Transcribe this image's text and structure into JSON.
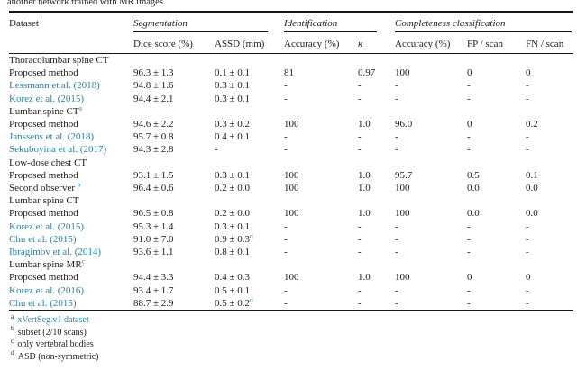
{
  "caption": "another network trained with MR images.",
  "link_color": "#2b80a6",
  "table": {
    "header": {
      "dataset": "Dataset",
      "groups": {
        "segmentation": "Segmentation",
        "identification": "Identification",
        "completeness": "Completeness classification"
      },
      "sub": {
        "dice": "Dice score (%)",
        "assd": "ASSD (mm)",
        "id_acc": "Accuracy (%)",
        "kappa": "κ",
        "c_acc": "Accuracy (%)",
        "fp": "FP / scan",
        "fn": "FN / scan"
      }
    },
    "rows": [
      {
        "type": "group",
        "label": "Thoracolumbar spine CT"
      },
      {
        "type": "data",
        "label": "Proposed method",
        "cells": [
          "96.3 ± 1.3",
          "0.1 ± 0.1",
          "81",
          "0.97",
          "100",
          "0",
          "0"
        ]
      },
      {
        "type": "data",
        "link": true,
        "label": "Lessmann et al. (2018)",
        "cells": [
          "94.8 ± 1.6",
          "0.3 ± 0.1",
          "-",
          "-",
          "-",
          "-",
          "-"
        ]
      },
      {
        "type": "data",
        "link": true,
        "label": "Korez et al. (2015)",
        "cells": [
          "94.4 ± 2.1",
          "0.3 ± 0.1",
          "-",
          "-",
          "-",
          "-",
          "-"
        ]
      },
      {
        "type": "group",
        "label": "Lumbar spine CT^a"
      },
      {
        "type": "data",
        "label": "Proposed method",
        "cells": [
          "94.6 ± 2.2",
          "0.3 ± 0.2",
          "100",
          "1.0",
          "96.0",
          "0",
          "0.2"
        ]
      },
      {
        "type": "data",
        "link": true,
        "label": "Janssens et al. (2018)",
        "cells": [
          "95.7 ± 0.8",
          "0.4 ± 0.1",
          "-",
          "-",
          "-",
          "-",
          "-"
        ]
      },
      {
        "type": "data",
        "link": true,
        "label": "Sekuboyina et al. (2017)",
        "cells": [
          "94.3 ± 2.8",
          "-",
          "-",
          "-",
          "-",
          "-",
          "-"
        ]
      },
      {
        "type": "group",
        "label": "Low-dose chest CT"
      },
      {
        "type": "data",
        "label": "Proposed method",
        "cells": [
          "93.1 ± 1.5",
          "0.3 ± 0.1",
          "100",
          "1.0",
          "95.7",
          "0.5",
          "0.1"
        ]
      },
      {
        "type": "data",
        "label": "Second observer ^b",
        "cells": [
          "96.4 ± 0.6",
          "0.2 ± 0.0",
          "100",
          "1.0",
          "100",
          "0.0",
          "0.0"
        ]
      },
      {
        "type": "group",
        "label": "Lumbar spine CT"
      },
      {
        "type": "data",
        "label": "Proposed method",
        "cells": [
          "96.5 ± 0.8",
          "0.2 ± 0.0",
          "100",
          "1.0",
          "100",
          "0.0",
          "0.0"
        ]
      },
      {
        "type": "data",
        "link": true,
        "label": "Korez et al. (2015)",
        "cells": [
          "95.3 ± 1.4",
          "0.3 ± 0.1",
          "-",
          "-",
          "-",
          "-",
          "-"
        ]
      },
      {
        "type": "data",
        "link": true,
        "label": "Chu et al. (2015)",
        "cells": [
          "91.0 ± 7.0",
          "0.9 ± 0.3^d",
          "-",
          "-",
          "-",
          "-",
          "-"
        ]
      },
      {
        "type": "data",
        "link": true,
        "label": "Ibragimov et al. (2014)",
        "cells": [
          "93.6 ± 1.1",
          "0.8 ± 0.1",
          "-",
          "-",
          "-",
          "-",
          "-"
        ]
      },
      {
        "type": "group",
        "label": "Lumbar spine MR^c"
      },
      {
        "type": "data",
        "label": "Proposed method",
        "cells": [
          "94.4 ± 3.3",
          "0.4 ± 0.3",
          "100",
          "1.0",
          "100",
          "0",
          "0"
        ]
      },
      {
        "type": "data",
        "link": true,
        "label": "Korez et al. (2016)",
        "cells": [
          "93.4 ± 1.7",
          "0.5 ± 0.1",
          "-",
          "-",
          "-",
          "-",
          "-"
        ]
      },
      {
        "type": "data",
        "link": true,
        "label": "Chu et al. (2015)",
        "cells": [
          "88.7 ± 2.9",
          "0.5 ± 0.2^d",
          "-",
          "-",
          "-",
          "-",
          "-"
        ]
      }
    ],
    "footnotes": [
      {
        "marker": "a",
        "text": "xVertSeg.v1 dataset",
        "link": true
      },
      {
        "marker": "b",
        "text": "subset (2/10 scans)",
        "link": false
      },
      {
        "marker": "c",
        "text": "only vertebral bodies",
        "link": false
      },
      {
        "marker": "d",
        "text": "ASD (non-symmetric)",
        "link": false
      }
    ]
  }
}
